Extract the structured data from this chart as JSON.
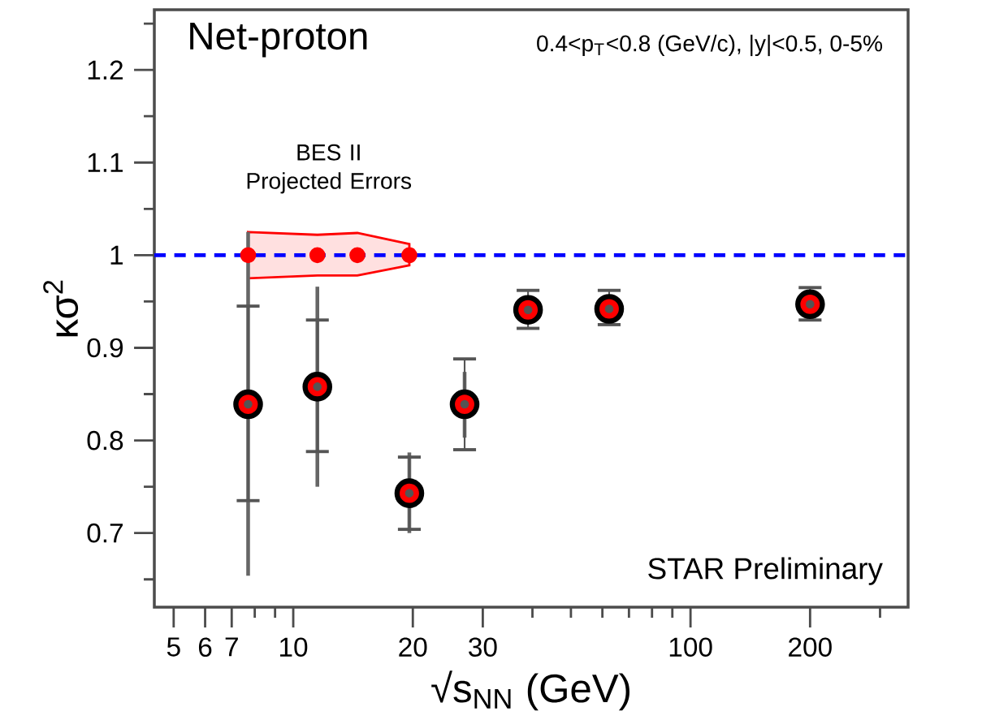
{
  "chart_data": {
    "type": "scatter",
    "title": "Net-proton",
    "subtitle": "0.4<p$_{T}$<0.8 (GeV/c), |y|<0.5, 0-5%",
    "xlabel": "√s$_{NN}$ (GeV)",
    "ylabel": "κσ$^{2}$",
    "log": "x",
    "xlim": [
      4.47,
      353
    ],
    "ylim": [
      0.62,
      1.265
    ],
    "xticks": [
      5,
      6,
      7,
      {
        "value": 8,
        "label": null
      },
      {
        "value": 9,
        "label": null
      },
      10,
      20,
      30,
      {
        "value": 40,
        "label": null
      },
      {
        "value": 50,
        "label": null
      },
      {
        "value": 60,
        "label": null
      },
      {
        "value": 70,
        "label": null
      },
      {
        "value": 80,
        "label": null
      },
      {
        "value": 90,
        "label": null
      },
      100,
      200,
      {
        "value": 300,
        "label": null
      }
    ],
    "yticks": [
      {
        "value": 0.65,
        "label": null
      },
      0.7,
      {
        "value": 0.75,
        "label": null
      },
      0.8,
      {
        "value": 0.85,
        "label": null
      },
      0.9,
      {
        "value": 0.95,
        "label": null
      },
      1,
      {
        "value": 1.05,
        "label": null
      },
      1.1,
      {
        "value": 1.15,
        "label": null
      },
      1.2,
      {
        "value": 1.25,
        "label": null
      }
    ],
    "grid": false,
    "series": [
      {
        "type": "scatter",
        "marker": "circle",
        "color": "#ff0000",
        "x": [
          7.7,
          11.5,
          19.6,
          27,
          39,
          62.4,
          200
        ],
        "values": [
          0.839,
          0.858,
          0.743,
          0.839,
          0.941,
          0.942,
          0.947
        ],
        "errors": [
          [
            0.654,
            1.025
          ],
          [
            0.75,
            0.966
          ],
          [
            0.7,
            0.787
          ],
          [
            0.803,
            0.874
          ],
          null,
          null,
          null
        ]
      },
      {
        "type": "scatter",
        "marker": "circle",
        "color": "#555555",
        "x": [
          7.7,
          11.5,
          19.6,
          27,
          39,
          62.4,
          200
        ],
        "values": [
          0.839,
          0.858,
          0.743,
          0.839,
          0.941,
          0.942,
          0.947
        ],
        "errors": [
          [
            0.735,
            0.945
          ],
          [
            0.788,
            0.93
          ],
          [
            0.704,
            0.782
          ],
          [
            0.79,
            0.888
          ],
          [
            0.921,
            0.962
          ],
          [
            0.925,
            0.962
          ],
          [
            0.93,
            0.965
          ]
        ]
      },
      {
        "type": "scatter",
        "marker": "circle",
        "color": "#ff0000",
        "x": [
          7.7,
          11.5,
          14.5,
          19.6
        ],
        "values": [
          1,
          1,
          1,
          1
        ],
        "lower": [
          0.975,
          0.978,
          0.978,
          0.989
        ],
        "upper": [
          1.025,
          1.022,
          1.024,
          1.012
        ]
      }
    ],
    "ref_lines": [
      {
        "axis": "y",
        "value": 1,
        "color": "#0000ff",
        "line_style": "dashed"
      }
    ],
    "annotations": [
      "BES II Projected Errors",
      "STAR Preliminary"
    ]
  }
}
